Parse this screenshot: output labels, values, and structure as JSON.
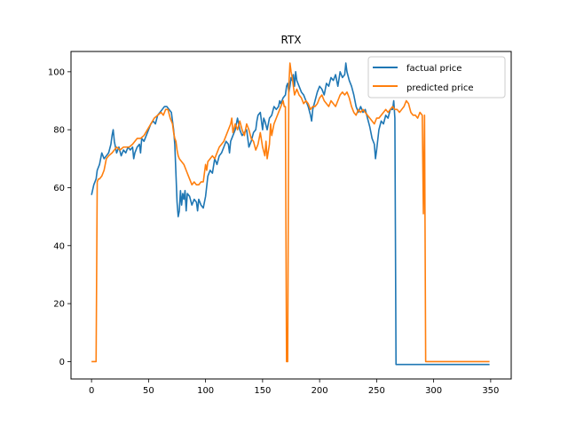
{
  "chart_data": {
    "type": "line",
    "title": "RTX",
    "xlabel": "",
    "ylabel": "",
    "xlim": [
      -18,
      368
    ],
    "ylim": [
      -6,
      107
    ],
    "xticks": [
      0,
      50,
      100,
      150,
      200,
      250,
      300,
      350
    ],
    "yticks": [
      0,
      20,
      40,
      60,
      80,
      100
    ],
    "grid": false,
    "legend_position": "top-right",
    "series": [
      {
        "name": "factual price",
        "color": "#1f77b4",
        "points": [
          [
            0,
            57.5
          ],
          [
            2,
            61
          ],
          [
            4,
            63
          ],
          [
            5,
            66
          ],
          [
            7,
            68
          ],
          [
            8,
            70
          ],
          [
            9,
            72
          ],
          [
            11,
            70
          ],
          [
            13,
            71
          ],
          [
            15,
            72
          ],
          [
            17,
            75
          ],
          [
            18,
            78
          ],
          [
            19,
            80
          ],
          [
            20,
            76
          ],
          [
            22,
            72
          ],
          [
            24,
            74
          ],
          [
            26,
            71
          ],
          [
            28,
            73
          ],
          [
            30,
            72
          ],
          [
            32,
            74
          ],
          [
            34,
            73
          ],
          [
            36,
            74
          ],
          [
            37,
            70
          ],
          [
            38,
            72
          ],
          [
            40,
            74
          ],
          [
            42,
            75
          ],
          [
            43,
            72
          ],
          [
            44,
            77
          ],
          [
            46,
            76
          ],
          [
            48,
            78
          ],
          [
            50,
            80
          ],
          [
            52,
            82
          ],
          [
            54,
            83
          ],
          [
            56,
            82
          ],
          [
            58,
            85
          ],
          [
            60,
            86
          ],
          [
            62,
            87
          ],
          [
            64,
            88
          ],
          [
            66,
            88
          ],
          [
            68,
            87
          ],
          [
            70,
            86
          ],
          [
            72,
            80
          ],
          [
            73,
            75
          ],
          [
            74,
            65
          ],
          [
            75,
            55
          ],
          [
            76,
            50
          ],
          [
            77,
            52
          ],
          [
            78,
            59
          ],
          [
            79,
            54
          ],
          [
            80,
            58
          ],
          [
            81,
            56
          ],
          [
            82,
            59
          ],
          [
            83,
            52
          ],
          [
            84,
            58
          ],
          [
            86,
            57
          ],
          [
            88,
            54
          ],
          [
            90,
            56
          ],
          [
            92,
            55
          ],
          [
            93,
            52
          ],
          [
            94,
            56
          ],
          [
            96,
            54
          ],
          [
            98,
            53
          ],
          [
            100,
            57
          ],
          [
            102,
            64
          ],
          [
            104,
            66
          ],
          [
            106,
            65
          ],
          [
            108,
            70
          ],
          [
            110,
            68
          ],
          [
            112,
            71
          ],
          [
            114,
            72
          ],
          [
            116,
            74
          ],
          [
            118,
            76
          ],
          [
            120,
            75
          ],
          [
            121,
            72
          ],
          [
            122,
            76
          ],
          [
            124,
            78
          ],
          [
            126,
            80
          ],
          [
            128,
            84
          ],
          [
            130,
            80
          ],
          [
            132,
            78
          ],
          [
            134,
            79
          ],
          [
            136,
            80
          ],
          [
            138,
            74
          ],
          [
            140,
            76
          ],
          [
            142,
            79
          ],
          [
            144,
            80
          ],
          [
            145,
            83
          ],
          [
            146,
            85
          ],
          [
            148,
            86
          ],
          [
            150,
            80
          ],
          [
            151,
            84
          ],
          [
            152,
            83
          ],
          [
            154,
            80
          ],
          [
            156,
            84
          ],
          [
            158,
            85
          ],
          [
            160,
            88
          ],
          [
            162,
            87
          ],
          [
            164,
            88
          ],
          [
            165,
            90
          ],
          [
            166,
            89
          ],
          [
            168,
            91
          ],
          [
            170,
            92
          ],
          [
            171,
            95
          ],
          [
            172,
            96
          ],
          [
            173,
            93
          ],
          [
            174,
            95
          ],
          [
            175,
            98
          ],
          [
            176,
            97
          ],
          [
            177,
            99
          ],
          [
            178,
            95
          ],
          [
            179,
            100
          ],
          [
            180,
            97
          ],
          [
            182,
            95
          ],
          [
            184,
            93
          ],
          [
            186,
            92
          ],
          [
            188,
            90
          ],
          [
            190,
            88
          ],
          [
            192,
            85
          ],
          [
            193,
            83
          ],
          [
            194,
            87
          ],
          [
            196,
            90
          ],
          [
            198,
            93
          ],
          [
            200,
            95
          ],
          [
            202,
            94
          ],
          [
            204,
            92
          ],
          [
            206,
            96
          ],
          [
            208,
            95
          ],
          [
            210,
            98
          ],
          [
            212,
            97
          ],
          [
            214,
            99
          ],
          [
            216,
            95
          ],
          [
            218,
            100
          ],
          [
            220,
            98
          ],
          [
            222,
            99
          ],
          [
            223,
            103
          ],
          [
            224,
            100
          ],
          [
            226,
            97
          ],
          [
            228,
            95
          ],
          [
            230,
            92
          ],
          [
            232,
            88
          ],
          [
            234,
            86
          ],
          [
            236,
            88
          ],
          [
            238,
            86
          ],
          [
            240,
            87
          ],
          [
            242,
            84
          ],
          [
            244,
            81
          ],
          [
            246,
            77
          ],
          [
            248,
            75
          ],
          [
            249,
            70
          ],
          [
            250,
            73
          ],
          [
            252,
            80
          ],
          [
            254,
            83
          ],
          [
            256,
            82
          ],
          [
            258,
            85
          ],
          [
            260,
            84
          ],
          [
            262,
            87
          ],
          [
            264,
            87
          ],
          [
            265,
            90
          ],
          [
            266,
            84
          ],
          [
            267,
            -1
          ],
          [
            300,
            -1
          ],
          [
            349,
            -1
          ]
        ]
      },
      {
        "name": "predicted price",
        "color": "#ff7f0e",
        "points": [
          [
            0,
            0
          ],
          [
            4,
            0
          ],
          [
            5,
            62
          ],
          [
            6,
            63
          ],
          [
            7,
            63
          ],
          [
            9,
            64
          ],
          [
            11,
            66
          ],
          [
            13,
            70
          ],
          [
            15,
            71
          ],
          [
            18,
            72
          ],
          [
            20,
            73
          ],
          [
            22,
            74
          ],
          [
            25,
            73
          ],
          [
            28,
            74
          ],
          [
            30,
            74
          ],
          [
            33,
            74
          ],
          [
            36,
            75
          ],
          [
            38,
            76
          ],
          [
            40,
            77
          ],
          [
            43,
            77
          ],
          [
            46,
            78
          ],
          [
            49,
            80
          ],
          [
            52,
            82
          ],
          [
            55,
            84
          ],
          [
            58,
            85
          ],
          [
            61,
            86
          ],
          [
            63,
            85
          ],
          [
            65,
            87
          ],
          [
            67,
            87
          ],
          [
            69,
            84
          ],
          [
            71,
            82
          ],
          [
            72,
            79
          ],
          [
            73,
            77
          ],
          [
            74,
            76
          ],
          [
            75,
            73
          ],
          [
            76,
            71
          ],
          [
            77,
            70
          ],
          [
            79,
            69
          ],
          [
            81,
            68
          ],
          [
            83,
            66
          ],
          [
            85,
            64
          ],
          [
            86,
            63
          ],
          [
            88,
            61
          ],
          [
            90,
            62
          ],
          [
            92,
            61
          ],
          [
            94,
            61
          ],
          [
            96,
            62
          ],
          [
            98,
            62
          ],
          [
            99,
            65
          ],
          [
            100,
            68
          ],
          [
            101,
            66
          ],
          [
            102,
            69
          ],
          [
            104,
            70
          ],
          [
            106,
            71
          ],
          [
            108,
            70
          ],
          [
            110,
            72
          ],
          [
            112,
            74
          ],
          [
            114,
            75
          ],
          [
            116,
            76
          ],
          [
            118,
            78
          ],
          [
            120,
            80
          ],
          [
            122,
            82
          ],
          [
            123,
            84
          ],
          [
            124,
            79
          ],
          [
            126,
            82
          ],
          [
            128,
            80
          ],
          [
            130,
            83
          ],
          [
            132,
            80
          ],
          [
            134,
            78
          ],
          [
            136,
            82
          ],
          [
            138,
            80
          ],
          [
            140,
            77
          ],
          [
            142,
            76
          ],
          [
            144,
            73
          ],
          [
            146,
            75
          ],
          [
            148,
            79
          ],
          [
            150,
            74
          ],
          [
            152,
            71
          ],
          [
            153,
            76
          ],
          [
            154,
            70
          ],
          [
            156,
            75
          ],
          [
            157,
            82
          ],
          [
            158,
            78
          ],
          [
            160,
            82
          ],
          [
            162,
            84
          ],
          [
            164,
            86
          ],
          [
            166,
            88
          ],
          [
            168,
            90
          ],
          [
            169,
            88
          ],
          [
            170,
            88
          ],
          [
            171,
            0
          ],
          [
            172,
            0
          ],
          [
            173,
            95
          ],
          [
            174,
            103
          ],
          [
            175,
            100
          ],
          [
            176,
            98
          ],
          [
            178,
            92
          ],
          [
            180,
            94
          ],
          [
            182,
            92
          ],
          [
            184,
            91
          ],
          [
            186,
            89
          ],
          [
            188,
            90
          ],
          [
            190,
            89
          ],
          [
            192,
            87
          ],
          [
            194,
            88
          ],
          [
            196,
            88
          ],
          [
            198,
            89
          ],
          [
            200,
            91
          ],
          [
            202,
            92
          ],
          [
            204,
            90
          ],
          [
            206,
            89
          ],
          [
            208,
            88
          ],
          [
            210,
            90
          ],
          [
            212,
            89
          ],
          [
            214,
            88
          ],
          [
            216,
            90
          ],
          [
            218,
            92
          ],
          [
            220,
            93
          ],
          [
            222,
            92
          ],
          [
            224,
            93
          ],
          [
            226,
            91
          ],
          [
            228,
            88
          ],
          [
            230,
            86
          ],
          [
            232,
            85
          ],
          [
            234,
            87
          ],
          [
            236,
            86
          ],
          [
            238,
            87
          ],
          [
            240,
            86
          ],
          [
            242,
            85
          ],
          [
            244,
            84
          ],
          [
            246,
            83
          ],
          [
            248,
            82
          ],
          [
            250,
            84
          ],
          [
            252,
            84
          ],
          [
            254,
            85
          ],
          [
            256,
            86
          ],
          [
            258,
            87
          ],
          [
            260,
            86
          ],
          [
            262,
            87
          ],
          [
            264,
            88
          ],
          [
            266,
            87
          ],
          [
            268,
            87
          ],
          [
            270,
            86
          ],
          [
            272,
            87
          ],
          [
            274,
            88
          ],
          [
            276,
            90
          ],
          [
            278,
            89
          ],
          [
            280,
            86
          ],
          [
            282,
            85
          ],
          [
            284,
            85
          ],
          [
            286,
            84
          ],
          [
            288,
            86
          ],
          [
            290,
            85
          ],
          [
            291,
            51
          ],
          [
            292,
            85
          ],
          [
            293,
            0
          ],
          [
            300,
            0
          ],
          [
            349,
            0
          ]
        ]
      }
    ]
  }
}
